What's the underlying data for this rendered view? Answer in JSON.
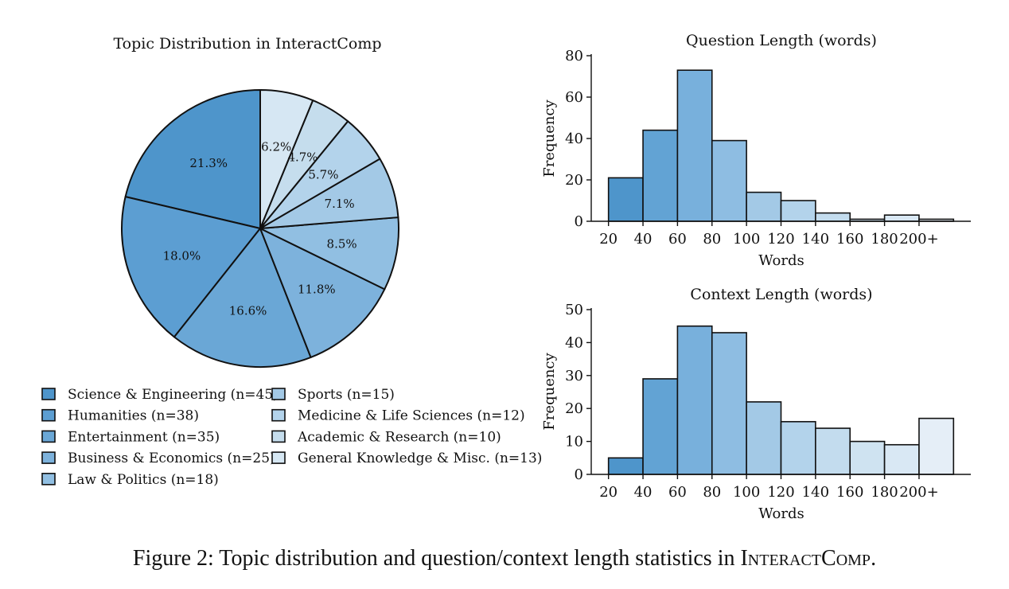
{
  "chart_data": [
    {
      "type": "pie",
      "title": "Topic Distribution in InteractComp",
      "slices": [
        {
          "label": "Science & Engineering (n=45)",
          "value": 21.3,
          "text": "21.3%",
          "color": "#4e95cb"
        },
        {
          "label": "Humanities (n=38)",
          "value": 18.0,
          "text": "18.0%",
          "color": "#5c9ed2"
        },
        {
          "label": "Entertainment (n=35)",
          "value": 16.6,
          "text": "16.6%",
          "color": "#6aa7d6"
        },
        {
          "label": "Business & Economics (n=25)",
          "value": 11.8,
          "text": "11.8%",
          "color": "#7db2dc"
        },
        {
          "label": "Law & Politics (n=18)",
          "value": 8.5,
          "text": "8.5%",
          "color": "#91bfe2"
        },
        {
          "label": "Sports (n=15)",
          "value": 7.1,
          "text": "7.1%",
          "color": "#a3c9e6"
        },
        {
          "label": "Medicine & Life Sciences (n=12)",
          "value": 5.7,
          "text": "5.7%",
          "color": "#b3d3eb"
        },
        {
          "label": "Academic & Research (n=10)",
          "value": 4.7,
          "text": "4.7%",
          "color": "#c5dded"
        },
        {
          "label": "General Knowledge & Misc. (n=13)",
          "value": 6.2,
          "text": "6.2%",
          "color": "#d6e7f3"
        }
      ]
    },
    {
      "type": "bar",
      "title": "Question Length (words)",
      "xlabel": "Words",
      "ylabel": "Frequency",
      "xticks": [
        "20",
        "40",
        "60",
        "80",
        "100",
        "120",
        "140",
        "160",
        "180",
        "200+"
      ],
      "bins": [
        [
          20,
          40
        ],
        [
          40,
          60
        ],
        [
          60,
          80
        ],
        [
          80,
          100
        ],
        [
          100,
          120
        ],
        [
          120,
          140
        ],
        [
          140,
          160
        ],
        [
          160,
          180
        ],
        [
          180,
          200
        ],
        [
          200,
          220
        ]
      ],
      "values": [
        21,
        44,
        73,
        39,
        14,
        10,
        4,
        1,
        3,
        1
      ],
      "yticks": [
        0,
        20,
        40,
        60,
        80
      ],
      "ylim": [
        0,
        80
      ],
      "colors": [
        "#4e95cb",
        "#62a3d4",
        "#78b0dc",
        "#8ebde2",
        "#a3c9e6",
        "#b3d3eb",
        "#c3dcee",
        "#cfe3f1",
        "#d9e8f4",
        "#e5eef7"
      ]
    },
    {
      "type": "bar",
      "title": "Context Length (words)",
      "xlabel": "Words",
      "ylabel": "Frequency",
      "xticks": [
        "20",
        "40",
        "60",
        "80",
        "100",
        "120",
        "140",
        "160",
        "180",
        "200+"
      ],
      "bins": [
        [
          20,
          40
        ],
        [
          40,
          60
        ],
        [
          60,
          80
        ],
        [
          80,
          100
        ],
        [
          100,
          120
        ],
        [
          120,
          140
        ],
        [
          140,
          160
        ],
        [
          160,
          180
        ],
        [
          180,
          200
        ],
        [
          200,
          220
        ]
      ],
      "values": [
        5,
        29,
        45,
        43,
        22,
        16,
        14,
        10,
        9,
        17
      ],
      "yticks": [
        0,
        10,
        20,
        30,
        40,
        50
      ],
      "ylim": [
        0,
        50
      ],
      "colors": [
        "#4e95cb",
        "#62a3d4",
        "#78b0dc",
        "#8ebde2",
        "#a3c9e6",
        "#b3d3eb",
        "#c3dcee",
        "#cfe3f1",
        "#d9e8f4",
        "#e5eef7"
      ]
    }
  ],
  "caption": {
    "prefix": "Figure 2: Topic distribution and question/context length statistics in ",
    "name": "InteractComp",
    "suffix": "."
  }
}
